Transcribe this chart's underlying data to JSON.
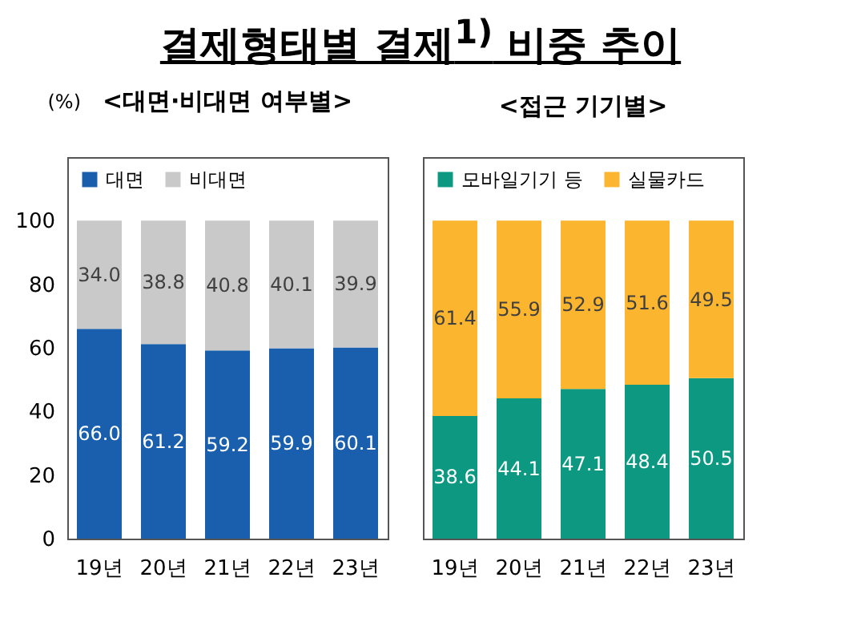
{
  "chart_data": [
    {
      "type": "bar",
      "title": "결제형태별 결제$^{1)}$ 비중 추이",
      "subtitle": "<대면·비대면 여부별>",
      "ylabel": "(%)",
      "categories": [
        "19년",
        "20년",
        "21년",
        "22년",
        "23년"
      ],
      "stacked": true,
      "legend": "top left",
      "ylim": [
        0,
        120
      ],
      "yticks": [
        0,
        20,
        40,
        60,
        80,
        100
      ],
      "series": [
        {
          "name": "대면",
          "color": "#1a5fad",
          "values": [
            66.0,
            61.2,
            59.2,
            59.9,
            60.1
          ],
          "value_labels": [
            "66.0",
            "61.2",
            "59.2",
            "59.9",
            "60.1"
          ]
        },
        {
          "name": "비대면",
          "color": "#c9c9c9",
          "values": [
            34.0,
            38.8,
            40.8,
            40.1,
            39.9
          ],
          "value_labels": [
            "34.0",
            "38.8",
            "40.8",
            "40.1",
            "39.9"
          ]
        }
      ]
    },
    {
      "type": "bar",
      "title": "<접근 기기별>",
      "categories": [
        "19년",
        "20년",
        "21년",
        "22년",
        "23년"
      ],
      "stacked": true,
      "legend": "top left",
      "tick_labels": "x",
      "ylim": [
        0,
        120
      ],
      "yticks": [
        0,
        20,
        40,
        60,
        80,
        100
      ],
      "series": [
        {
          "name": "모바일기기 등",
          "color": "#0d9882",
          "values": [
            38.6,
            44.1,
            47.1,
            48.4,
            50.5
          ],
          "value_labels": [
            "38.6",
            "44.1",
            "47.1",
            "48.4",
            "50.5"
          ]
        },
        {
          "name": "실물카드",
          "color": "#fbb52f",
          "values": [
            61.4,
            55.9,
            52.9,
            51.6,
            49.5
          ],
          "value_labels": [
            "61.4",
            "55.9",
            "52.9",
            "51.6",
            "49.5"
          ]
        }
      ]
    }
  ]
}
